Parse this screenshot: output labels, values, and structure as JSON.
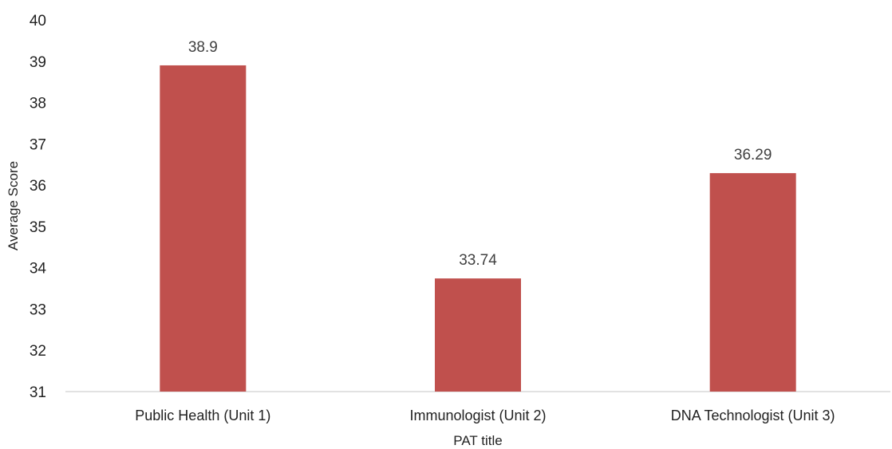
{
  "chart_data": {
    "type": "bar",
    "categories": [
      "Public Health (Unit 1)",
      "Immunologist (Unit 2)",
      "DNA Technologist (Unit 3)"
    ],
    "values": [
      38.9,
      33.74,
      36.29
    ],
    "data_labels": [
      "38.9",
      "33.74",
      "36.29"
    ],
    "title": "",
    "xlabel": "PAT title",
    "ylabel": "Average Score",
    "ylim": [
      31,
      40
    ],
    "yticks": [
      "31",
      "32",
      "33",
      "34",
      "35",
      "36",
      "37",
      "38",
      "39",
      "40"
    ],
    "grid": false,
    "legend": "none",
    "bar_color": "#c0504d",
    "axis_color": "#d9d9d9"
  }
}
